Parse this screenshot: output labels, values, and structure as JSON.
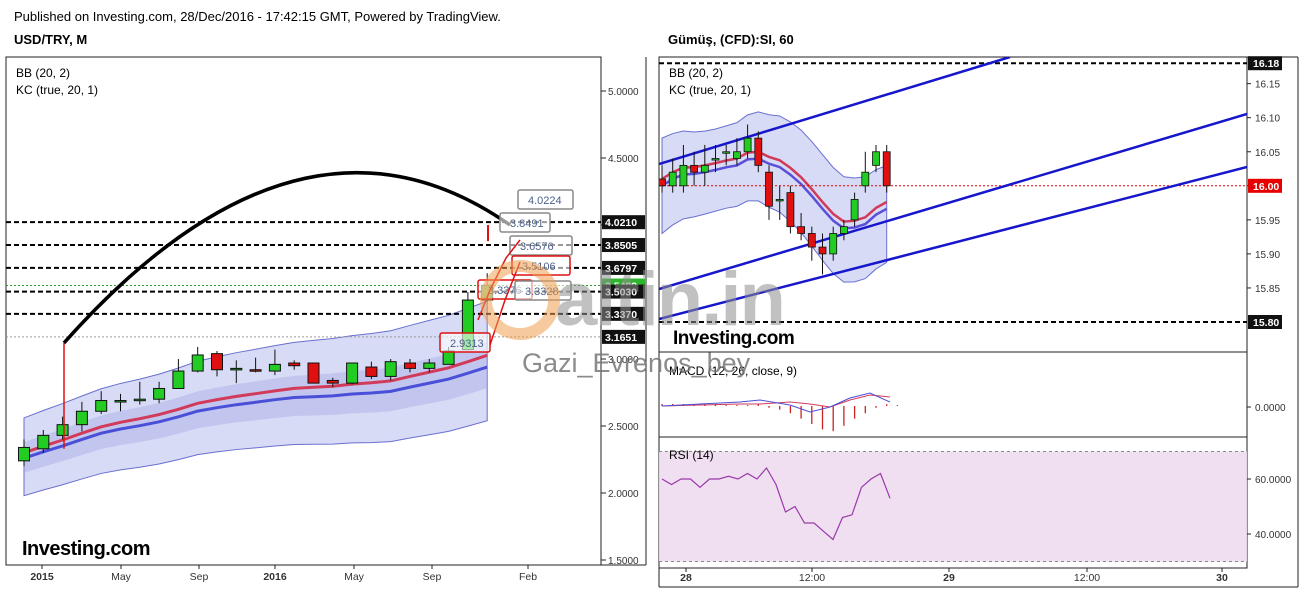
{
  "header": {
    "published": "Published on Investing.com, 28/Dec/2016 - 17:42:15 GMT, Powered by TradingView."
  },
  "watermarks": {
    "site": "altin.in",
    "user": "Gazi_Evrenos_bey"
  },
  "chart_data": [
    {
      "type": "candlestick",
      "title": "USD/TRY, M",
      "branding": "Investing.com",
      "indicators": [
        "BB (20, 2)",
        "KC (true, 20, 1)"
      ],
      "x_ticks": [
        "2015",
        "May",
        "Sep",
        "2016",
        "May",
        "Sep",
        "Feb"
      ],
      "y_ticks": [
        "5.0000",
        "4.5000",
        "4.0000",
        "3.5000",
        "3.0000",
        "2.5000",
        "2.0000",
        "1.5000"
      ],
      "ylim": [
        1.5,
        5.25
      ],
      "candles": [
        {
          "o": 2.24,
          "h": 2.4,
          "l": 2.2,
          "c": 2.34
        },
        {
          "o": 2.33,
          "h": 2.47,
          "l": 2.3,
          "c": 2.43
        },
        {
          "o": 2.43,
          "h": 2.57,
          "l": 2.4,
          "c": 2.51
        },
        {
          "o": 2.51,
          "h": 2.68,
          "l": 2.46,
          "c": 2.61
        },
        {
          "o": 2.61,
          "h": 2.76,
          "l": 2.59,
          "c": 2.69
        },
        {
          "o": 2.69,
          "h": 2.74,
          "l": 2.61,
          "c": 2.69
        },
        {
          "o": 2.69,
          "h": 2.83,
          "l": 2.66,
          "c": 2.7
        },
        {
          "o": 2.7,
          "h": 2.83,
          "l": 2.67,
          "c": 2.78
        },
        {
          "o": 2.78,
          "h": 3.0,
          "l": 2.78,
          "c": 2.91
        },
        {
          "o": 2.91,
          "h": 3.09,
          "l": 2.9,
          "c": 3.03
        },
        {
          "o": 3.04,
          "h": 3.06,
          "l": 2.87,
          "c": 2.92
        },
        {
          "o": 2.92,
          "h": 2.99,
          "l": 2.82,
          "c": 2.93
        },
        {
          "o": 2.92,
          "h": 3.01,
          "l": 2.9,
          "c": 2.91
        },
        {
          "o": 2.91,
          "h": 3.07,
          "l": 2.88,
          "c": 2.96
        },
        {
          "o": 2.97,
          "h": 2.99,
          "l": 2.92,
          "c": 2.95
        },
        {
          "o": 2.97,
          "h": 2.97,
          "l": 2.82,
          "c": 2.82
        },
        {
          "o": 2.84,
          "h": 2.86,
          "l": 2.79,
          "c": 2.82
        },
        {
          "o": 2.82,
          "h": 2.97,
          "l": 2.81,
          "c": 2.97
        },
        {
          "o": 2.94,
          "h": 2.98,
          "l": 2.85,
          "c": 2.87
        },
        {
          "o": 2.87,
          "h": 3.0,
          "l": 2.84,
          "c": 2.98
        },
        {
          "o": 2.97,
          "h": 3.0,
          "l": 2.9,
          "c": 2.93
        },
        {
          "o": 2.93,
          "h": 3.0,
          "l": 2.9,
          "c": 2.97
        },
        {
          "o": 2.96,
          "h": 3.09,
          "l": 2.96,
          "c": 3.06
        },
        {
          "o": 3.07,
          "h": 3.5,
          "l": 3.07,
          "c": 3.44
        },
        {
          "o": 3.44,
          "h": 3.64,
          "l": 3.43,
          "c": 3.55
        }
      ],
      "levels": [
        {
          "value": "4.0210",
          "dashed": true
        },
        {
          "value": "3.8505",
          "dashed": true
        },
        {
          "value": "3.6797",
          "dashed": true
        },
        {
          "value": "3.5483",
          "dashed": false
        },
        {
          "value": "3.5030",
          "dashed": true
        },
        {
          "value": "3.3370",
          "dashed": true
        },
        {
          "value": "3.1651",
          "dashed": false
        }
      ],
      "label_boxes": [
        "4.0224",
        "3.8491",
        "3.6576",
        "3.5106",
        "3.3376",
        "3.3328",
        "2.9313"
      ]
    },
    {
      "type": "candlestick",
      "title": "Gümüş, (CFD):SI, 60",
      "branding": "Investing.com",
      "indicators": [
        "BB (20, 2)",
        "KC (true, 20, 1)"
      ],
      "x_ticks": [
        "28",
        "12:00",
        "29",
        "12:00",
        "30"
      ],
      "y_ticks": [
        "16.15",
        "16.10",
        "16.05",
        "16.00",
        "15.95",
        "15.90",
        "15.85"
      ],
      "ylim": [
        15.765,
        16.195
      ],
      "last_price": "16.00",
      "levels": [
        "16.18",
        "15.80"
      ],
      "candles": [
        {
          "o": 16.01,
          "h": 16.03,
          "l": 15.99,
          "c": 16.0
        },
        {
          "o": 16.0,
          "h": 16.04,
          "l": 15.99,
          "c": 16.02
        },
        {
          "o": 16.0,
          "h": 16.06,
          "l": 15.99,
          "c": 16.03
        },
        {
          "o": 16.03,
          "h": 16.05,
          "l": 16.0,
          "c": 16.02
        },
        {
          "o": 16.02,
          "h": 16.06,
          "l": 16.0,
          "c": 16.03
        },
        {
          "o": 16.04,
          "h": 16.06,
          "l": 16.02,
          "c": 16.04
        },
        {
          "o": 16.05,
          "h": 16.06,
          "l": 16.03,
          "c": 16.05
        },
        {
          "o": 16.04,
          "h": 16.07,
          "l": 16.03,
          "c": 16.05
        },
        {
          "o": 16.05,
          "h": 16.09,
          "l": 16.04,
          "c": 16.07
        },
        {
          "o": 16.07,
          "h": 16.08,
          "l": 16.02,
          "c": 16.03
        },
        {
          "o": 16.02,
          "h": 16.03,
          "l": 15.95,
          "c": 15.97
        },
        {
          "o": 15.98,
          "h": 16.0,
          "l": 15.95,
          "c": 15.98
        },
        {
          "o": 15.99,
          "h": 16.0,
          "l": 15.93,
          "c": 15.94
        },
        {
          "o": 15.94,
          "h": 15.96,
          "l": 15.92,
          "c": 15.93
        },
        {
          "o": 15.93,
          "h": 15.94,
          "l": 15.89,
          "c": 15.91
        },
        {
          "o": 15.91,
          "h": 15.93,
          "l": 15.87,
          "c": 15.9
        },
        {
          "o": 15.9,
          "h": 15.94,
          "l": 15.89,
          "c": 15.93
        },
        {
          "o": 15.93,
          "h": 15.95,
          "l": 15.92,
          "c": 15.94
        },
        {
          "o": 15.95,
          "h": 15.99,
          "l": 15.94,
          "c": 15.98
        },
        {
          "o": 16.0,
          "h": 16.05,
          "l": 15.99,
          "c": 16.02
        },
        {
          "o": 16.03,
          "h": 16.06,
          "l": 16.02,
          "c": 16.05
        },
        {
          "o": 16.05,
          "h": 16.06,
          "l": 15.99,
          "c": 16.0
        }
      ]
    },
    {
      "type": "histogram",
      "title": "MACD (12, 26, close, 9)",
      "y_ticks": [
        "0.0000"
      ]
    },
    {
      "type": "line",
      "title": "RSI (14)",
      "y_ticks": [
        "60.0000",
        "40.0000"
      ],
      "ylim": [
        26,
        75
      ],
      "values": [
        60,
        58,
        60,
        60,
        57,
        60,
        60,
        61,
        60,
        62,
        60,
        64,
        58,
        48,
        50,
        44,
        44,
        41,
        38,
        46,
        47,
        57,
        60,
        62,
        53
      ]
    }
  ],
  "colors": {
    "up": "#22cc22",
    "down": "#e01010",
    "band_fill": "#b7bdec",
    "channel": "#1616cc",
    "price_tag": "#e60000",
    "rsi_fill": "#eddcef"
  }
}
